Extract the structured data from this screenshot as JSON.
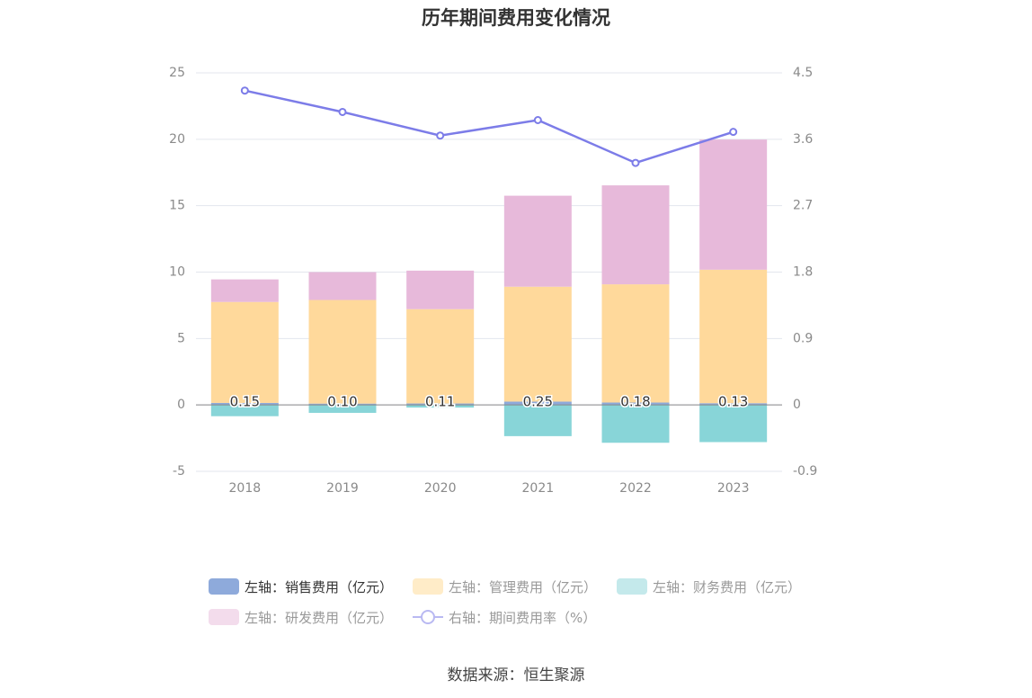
{
  "source_text": "数据来源：恒生聚源",
  "chart_data": {
    "type": "bar",
    "title": "历年期间费用变化情况",
    "categories": [
      "2018",
      "2019",
      "2020",
      "2021",
      "2022",
      "2023"
    ],
    "stacked": true,
    "y_left": {
      "ylim": [
        -5,
        25
      ],
      "ticks": [
        "-5",
        "0",
        "5",
        "10",
        "15",
        "20",
        "25"
      ]
    },
    "y_right": {
      "ylim": [
        -0.9,
        4.5
      ],
      "ticks": [
        "-0.9",
        "0",
        "0.9",
        "1.8",
        "2.7",
        "3.6",
        "4.5"
      ]
    },
    "grid": true,
    "legend_placement": "bottom",
    "series": [
      {
        "name": "左轴：销售费用（亿元）",
        "axis": "left",
        "type": "bar",
        "color": "#8eaadb",
        "values": [
          0.15,
          0.1,
          0.11,
          0.25,
          0.18,
          0.13
        ],
        "data_labels": [
          "0.15",
          "0.10",
          "0.11",
          "0.25",
          "0.18",
          "0.13"
        ]
      },
      {
        "name": "左轴：管理费用（亿元）",
        "axis": "left",
        "type": "bar",
        "color": "#ffd99b",
        "values": [
          7.6,
          7.8,
          7.1,
          8.65,
          8.9,
          10.05
        ]
      },
      {
        "name": "左轴：财务费用（亿元）",
        "axis": "left",
        "type": "bar",
        "color": "#88d5d8",
        "values": [
          -0.85,
          -0.6,
          -0.2,
          -2.35,
          -2.85,
          -2.8
        ]
      },
      {
        "name": "左轴：研发费用（亿元）",
        "axis": "left",
        "type": "bar",
        "color": "#e7b9da",
        "values": [
          1.7,
          2.1,
          2.9,
          6.85,
          7.45,
          9.8
        ]
      },
      {
        "name": "右轴：期间费用率（%）",
        "axis": "right",
        "type": "line",
        "color": "#7c7ce8",
        "values": [
          4.26,
          3.97,
          3.65,
          3.86,
          3.28,
          3.7
        ]
      }
    ]
  }
}
